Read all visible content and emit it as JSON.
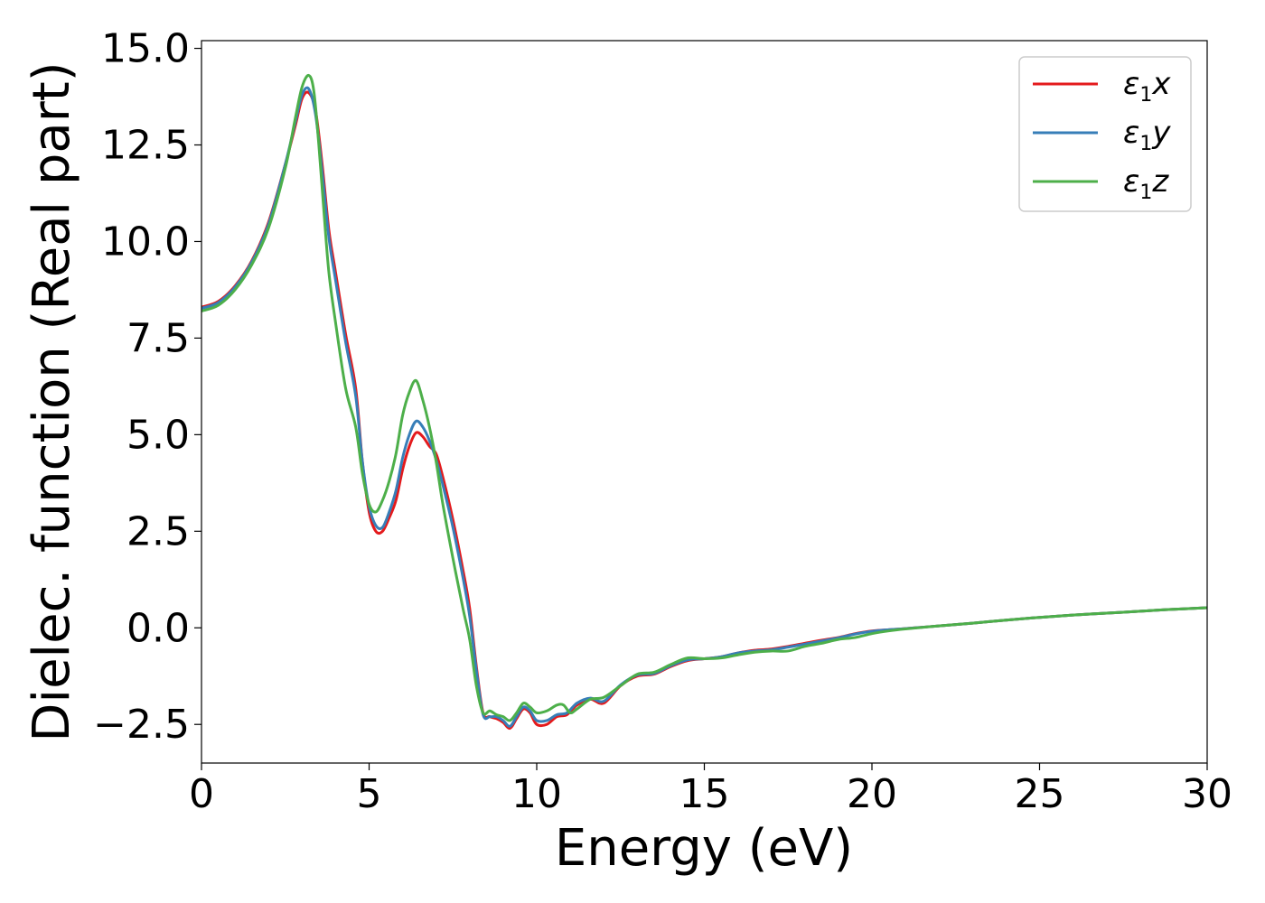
{
  "chart_data": {
    "type": "line",
    "title": "",
    "xlabel": "Energy (eV)",
    "ylabel": "Dielec. function (Real part)",
    "xlim": [
      0,
      30
    ],
    "ylim": [
      -3.5,
      15.2
    ],
    "x_ticks": [
      0,
      5,
      10,
      15,
      20,
      25,
      30
    ],
    "x_tick_labels": [
      "0",
      "5",
      "10",
      "15",
      "20",
      "25",
      "30"
    ],
    "y_ticks": [
      -2.5,
      0.0,
      2.5,
      5.0,
      7.5,
      10.0,
      12.5,
      15.0
    ],
    "y_tick_labels": [
      "−2.5",
      "0.0",
      "2.5",
      "5.0",
      "7.5",
      "10.0",
      "12.5",
      "15.0"
    ],
    "grid": false,
    "legend_position": "top-right",
    "series": [
      {
        "name": "ε₁x",
        "legend_symbol": "ε",
        "legend_sub": "1",
        "legend_var": "x",
        "color": "#e41a1c",
        "x": [
          0,
          0.5,
          1,
          1.5,
          2,
          2.5,
          2.8,
          3.0,
          3.2,
          3.4,
          3.6,
          3.8,
          4.0,
          4.3,
          4.6,
          4.8,
          5.0,
          5.2,
          5.4,
          5.6,
          5.8,
          6.0,
          6.2,
          6.4,
          6.6,
          6.8,
          7.0,
          7.2,
          7.5,
          7.8,
          8.0,
          8.2,
          8.4,
          8.6,
          8.8,
          9.0,
          9.2,
          9.4,
          9.6,
          9.8,
          10.0,
          10.3,
          10.6,
          10.9,
          11.2,
          11.6,
          12.0,
          12.5,
          13.0,
          13.5,
          14.0,
          14.5,
          15.0,
          15.5,
          16.0,
          16.5,
          17.0,
          17.5,
          18.0,
          18.5,
          19.0,
          19.5,
          20.0,
          20.5,
          21.0,
          22.0,
          23.0,
          24.0,
          25.0,
          26.0,
          27.0,
          28.0,
          29.0,
          30.0
        ],
        "y": [
          8.3,
          8.45,
          8.85,
          9.5,
          10.5,
          12.0,
          13.0,
          13.7,
          13.85,
          13.4,
          12.0,
          10.3,
          9.2,
          7.6,
          6.2,
          4.3,
          3.0,
          2.5,
          2.5,
          2.85,
          3.3,
          4.1,
          4.7,
          5.05,
          4.95,
          4.7,
          4.5,
          3.9,
          2.8,
          1.5,
          0.5,
          -1.0,
          -2.2,
          -2.3,
          -2.35,
          -2.45,
          -2.6,
          -2.35,
          -2.1,
          -2.2,
          -2.5,
          -2.5,
          -2.3,
          -2.25,
          -2.0,
          -1.85,
          -1.95,
          -1.5,
          -1.25,
          -1.2,
          -1.0,
          -0.85,
          -0.8,
          -0.75,
          -0.65,
          -0.58,
          -0.55,
          -0.48,
          -0.4,
          -0.32,
          -0.25,
          -0.15,
          -0.08,
          -0.05,
          -0.02,
          0.05,
          0.12,
          0.2,
          0.27,
          0.33,
          0.38,
          0.43,
          0.48,
          0.52
        ]
      },
      {
        "name": "ε₁y",
        "legend_symbol": "ε",
        "legend_sub": "1",
        "legend_var": "y",
        "color": "#377eb8",
        "x": [
          0,
          0.5,
          1,
          1.5,
          2,
          2.5,
          2.8,
          3.0,
          3.2,
          3.4,
          3.6,
          3.8,
          4.0,
          4.3,
          4.6,
          4.8,
          5.0,
          5.2,
          5.4,
          5.6,
          5.8,
          6.0,
          6.2,
          6.4,
          6.6,
          6.8,
          7.0,
          7.2,
          7.5,
          7.8,
          8.0,
          8.2,
          8.4,
          8.6,
          8.8,
          9.0,
          9.2,
          9.4,
          9.6,
          9.8,
          10.0,
          10.3,
          10.6,
          10.9,
          11.2,
          11.6,
          12.0,
          12.5,
          13.0,
          13.5,
          14.0,
          14.5,
          15.0,
          15.5,
          16.0,
          16.5,
          17.0,
          17.5,
          18.0,
          18.5,
          19.0,
          19.5,
          20.0,
          20.5,
          21.0,
          22.0,
          23.0,
          24.0,
          25.0,
          26.0,
          27.0,
          28.0,
          29.0,
          30.0
        ],
        "y": [
          8.27,
          8.42,
          8.82,
          9.47,
          10.45,
          12.0,
          13.1,
          13.8,
          13.95,
          13.3,
          11.8,
          10.1,
          9.0,
          7.4,
          6.0,
          4.3,
          3.15,
          2.65,
          2.6,
          3.0,
          3.55,
          4.4,
          5.0,
          5.35,
          5.2,
          4.85,
          4.35,
          3.7,
          2.6,
          1.3,
          0.3,
          -1.1,
          -2.25,
          -2.3,
          -2.3,
          -2.4,
          -2.55,
          -2.3,
          -2.05,
          -2.15,
          -2.4,
          -2.4,
          -2.25,
          -2.2,
          -1.95,
          -1.82,
          -1.9,
          -1.48,
          -1.22,
          -1.18,
          -0.98,
          -0.83,
          -0.8,
          -0.75,
          -0.65,
          -0.6,
          -0.57,
          -0.5,
          -0.42,
          -0.34,
          -0.26,
          -0.16,
          -0.09,
          -0.05,
          -0.02,
          0.05,
          0.12,
          0.2,
          0.27,
          0.33,
          0.38,
          0.43,
          0.48,
          0.52
        ]
      },
      {
        "name": "ε₁z",
        "legend_symbol": "ε",
        "legend_sub": "1",
        "legend_var": "z",
        "color": "#4daf4a",
        "x": [
          0,
          0.5,
          1,
          1.5,
          2,
          2.5,
          2.8,
          3.0,
          3.2,
          3.35,
          3.5,
          3.65,
          3.8,
          4.0,
          4.3,
          4.6,
          4.8,
          5.0,
          5.2,
          5.4,
          5.6,
          5.8,
          6.0,
          6.2,
          6.4,
          6.6,
          6.8,
          7.0,
          7.2,
          7.5,
          7.8,
          8.0,
          8.2,
          8.4,
          8.6,
          8.8,
          9.0,
          9.2,
          9.4,
          9.6,
          9.8,
          10.0,
          10.3,
          10.6,
          10.8,
          11.0,
          11.2,
          11.6,
          12.0,
          12.5,
          13.0,
          13.5,
          14.0,
          14.5,
          15.0,
          15.5,
          16.0,
          16.5,
          17.0,
          17.5,
          18.0,
          18.5,
          19.0,
          19.5,
          20.0,
          20.5,
          21.0,
          22.0,
          23.0,
          24.0,
          25.0,
          26.0,
          27.0,
          28.0,
          29.0,
          30.0
        ],
        "y": [
          8.2,
          8.35,
          8.75,
          9.4,
          10.35,
          11.9,
          13.2,
          14.0,
          14.3,
          13.9,
          12.5,
          10.8,
          9.2,
          7.9,
          6.2,
          5.2,
          4.0,
          3.2,
          3.0,
          3.3,
          3.8,
          4.5,
          5.5,
          6.1,
          6.4,
          5.9,
          5.2,
          4.3,
          3.2,
          1.8,
          0.5,
          -0.3,
          -1.5,
          -2.2,
          -2.15,
          -2.25,
          -2.3,
          -2.4,
          -2.2,
          -1.95,
          -2.05,
          -2.2,
          -2.15,
          -2.0,
          -2.0,
          -2.2,
          -2.1,
          -1.85,
          -1.8,
          -1.5,
          -1.2,
          -1.15,
          -0.95,
          -0.78,
          -0.8,
          -0.78,
          -0.7,
          -0.63,
          -0.6,
          -0.6,
          -0.48,
          -0.4,
          -0.3,
          -0.25,
          -0.15,
          -0.08,
          -0.03,
          0.05,
          0.12,
          0.2,
          0.27,
          0.33,
          0.38,
          0.43,
          0.48,
          0.52
        ]
      }
    ]
  }
}
